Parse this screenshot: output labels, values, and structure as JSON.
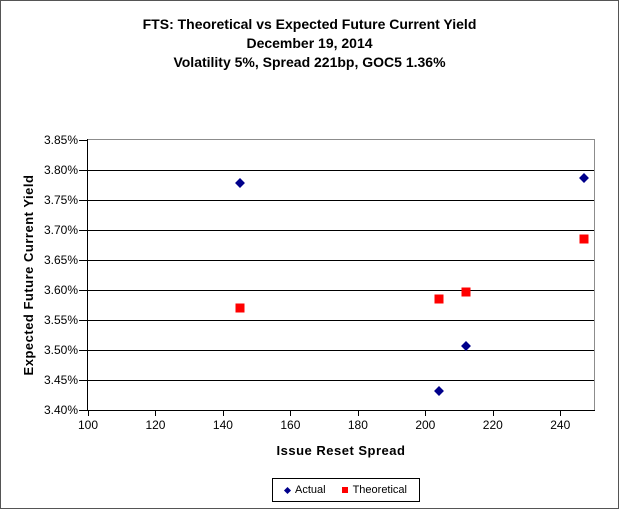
{
  "chart_data": {
    "type": "scatter",
    "title_lines": [
      "FTS: Theoretical vs Expected Future Current Yield",
      "December 19, 2014",
      "Volatility 5%, Spread 221bp, GOC5 1.36%"
    ],
    "xlabel": "Issue Reset Spread",
    "ylabel": "Expected Future Current Yield",
    "xlim": [
      100,
      250
    ],
    "ylim": [
      3.4,
      3.85
    ],
    "x_ticks": [
      100,
      120,
      140,
      160,
      180,
      200,
      220,
      240
    ],
    "y_ticks": [
      3.85,
      3.8,
      3.75,
      3.7,
      3.65,
      3.6,
      3.55,
      3.5,
      3.45,
      3.4
    ],
    "y_tick_format": "percent-2dp",
    "grid": "horizontal",
    "legend_position": "bottom-center",
    "colors": {
      "actual": "#00008B",
      "theoretical": "#FF0000",
      "gridline": "#000000",
      "plot_border": "#8C8C8C"
    },
    "series": [
      {
        "name": "Actual",
        "marker": "diamond",
        "color": "#00008B",
        "points": [
          [
            145,
            3.778
          ],
          [
            204,
            3.432
          ],
          [
            212,
            3.507
          ],
          [
            247,
            3.787
          ]
        ]
      },
      {
        "name": "Theoretical",
        "marker": "square",
        "color": "#FF0000",
        "points": [
          [
            145,
            3.57
          ],
          [
            204,
            3.585
          ],
          [
            212,
            3.596
          ],
          [
            247,
            3.685
          ]
        ]
      }
    ]
  }
}
